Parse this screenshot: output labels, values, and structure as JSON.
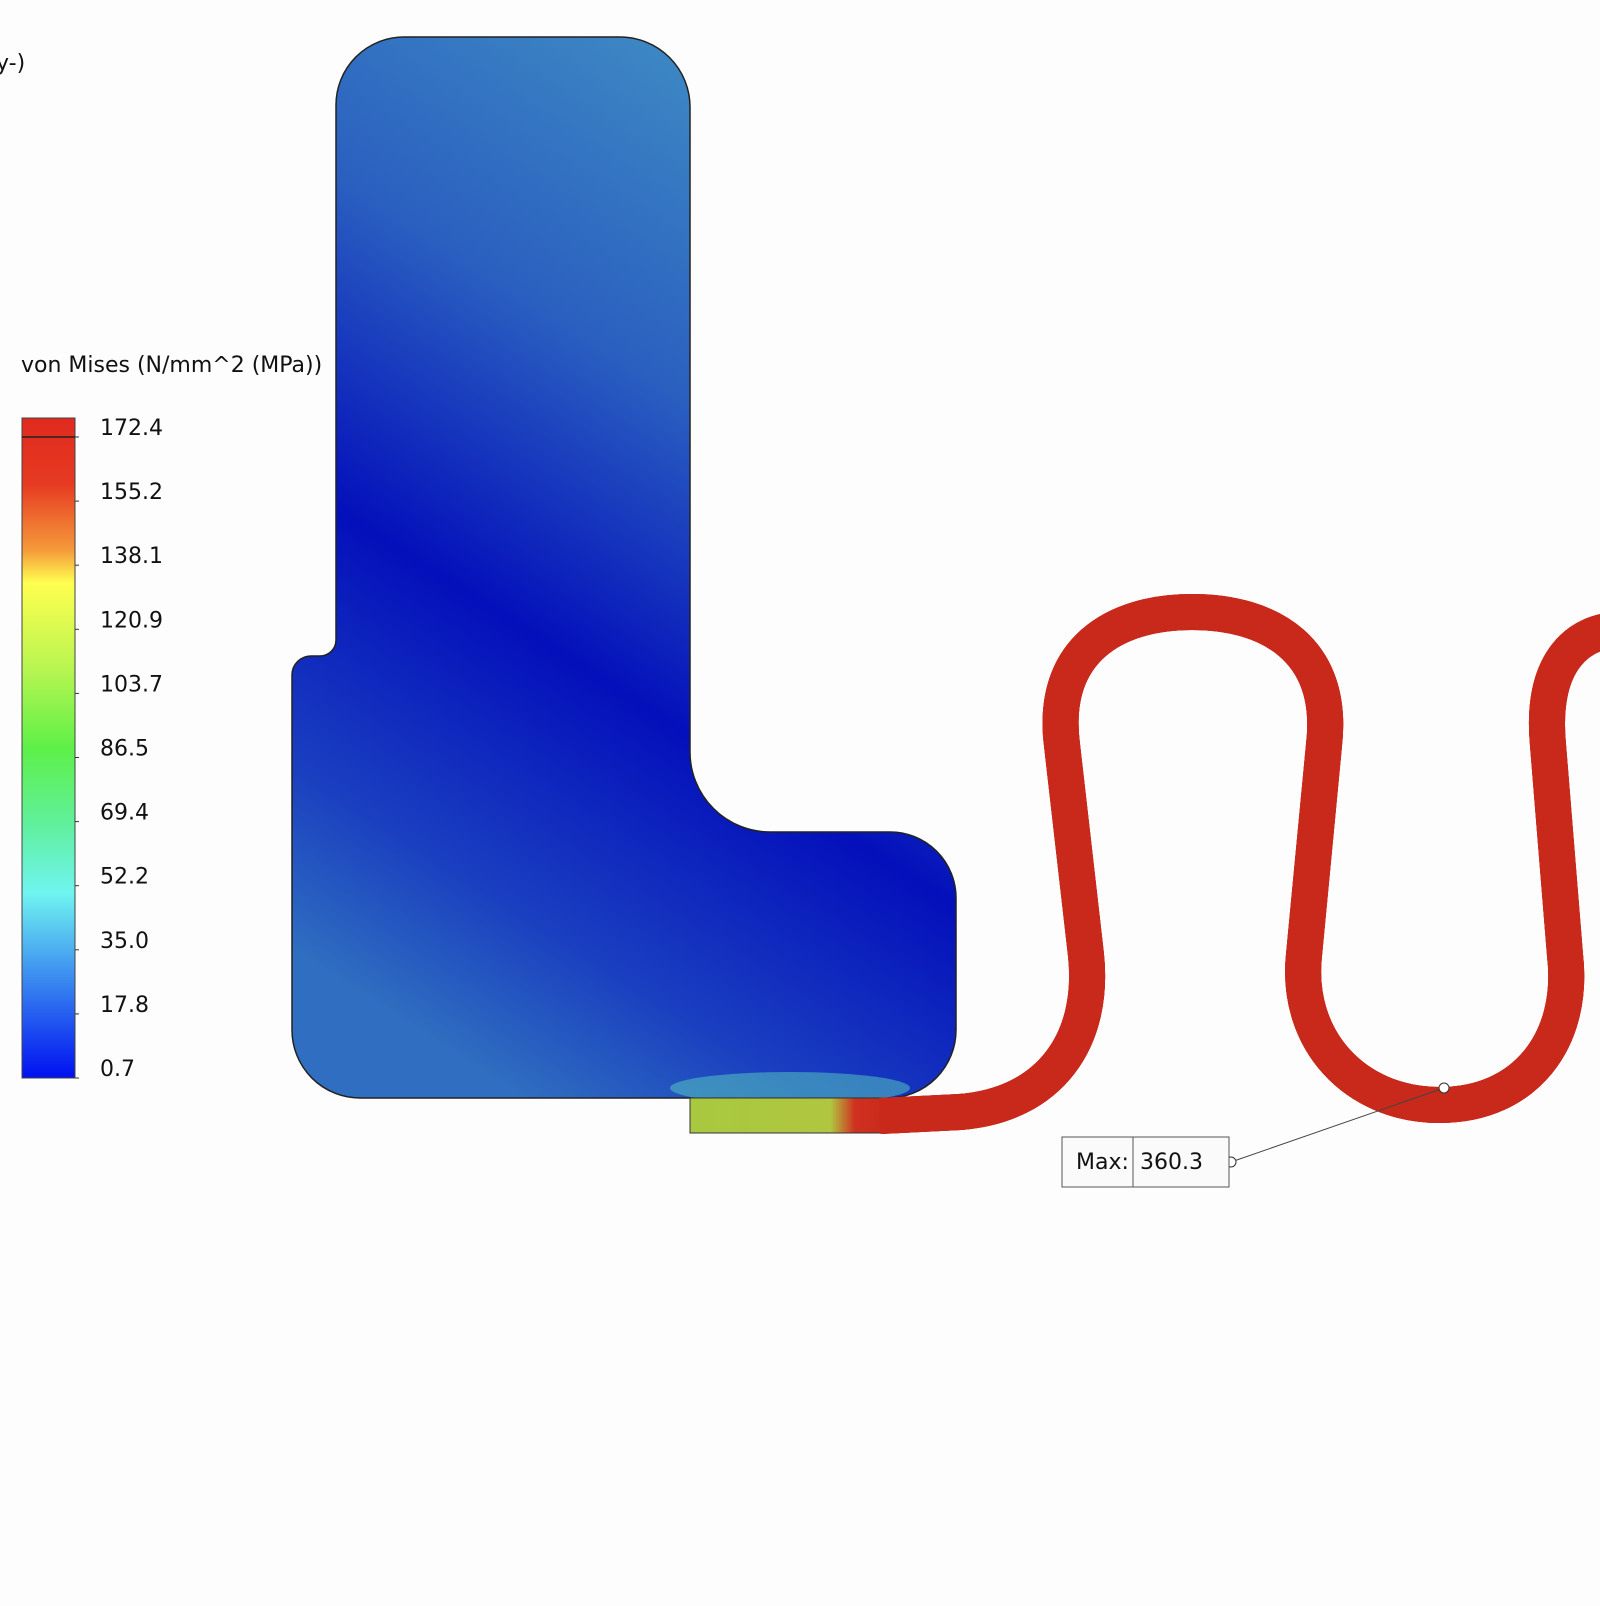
{
  "header": {
    "cut_text": "y-)"
  },
  "legend": {
    "title": "von Mises (N/mm^2 (MPa))",
    "labels": [
      "172.4",
      "155.2",
      "138.1",
      "120.9",
      "103.7",
      "86.5",
      "69.4",
      "52.2",
      "35.0",
      "17.8",
      "0.7"
    ]
  },
  "callout": {
    "label": "Max:",
    "value": "360.3"
  }
}
